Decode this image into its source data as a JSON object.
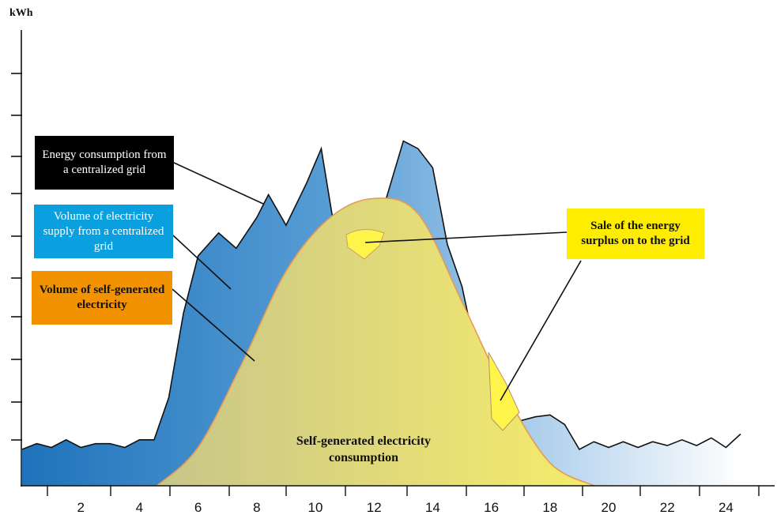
{
  "chart_data": {
    "type": "area",
    "ylabel": "kWh",
    "xlim": [
      0,
      26
    ],
    "x_ticks": [
      "2",
      "4",
      "6",
      "8",
      "10",
      "12",
      "14",
      "16",
      "18",
      "20",
      "22",
      "24"
    ],
    "series": [
      {
        "name": "Volume of electricity supply from a centralized grid",
        "color": "#2f86c8",
        "x": [
          0,
          0.5,
          1,
          1.5,
          2,
          2.5,
          3,
          3.5,
          4,
          4.5,
          5,
          5.5,
          6,
          6.7,
          7.3,
          8,
          8.4,
          9,
          9.7,
          10.2,
          10.8,
          11.5,
          12.3,
          13,
          13.5,
          14,
          14.5,
          15,
          15.5,
          16,
          16.5,
          17,
          17.5,
          18,
          18.5,
          19,
          19.5,
          20,
          20.5,
          21,
          21.5,
          22,
          22.5,
          23,
          23.5,
          24,
          24.5
        ],
        "y": [
          0.95,
          1.1,
          1.0,
          1.2,
          1.0,
          1.1,
          1.1,
          1.0,
          1.2,
          1.2,
          2.3,
          4.5,
          6.0,
          6.6,
          6.2,
          7.0,
          7.6,
          6.8,
          7.9,
          8.8,
          6.0,
          6.0,
          7.2,
          9.0,
          8.8,
          8.3,
          6.3,
          5.2,
          3.4,
          1.5,
          1.3,
          1.7,
          1.8,
          1.85,
          1.6,
          0.95,
          1.15,
          1.0,
          1.15,
          1.0,
          1.15,
          1.05,
          1.2,
          1.05,
          1.25,
          1.0,
          1.35
        ]
      },
      {
        "name": "Volume of self-generated electricity",
        "color": "#e8e070",
        "x": [
          4.6,
          6,
          7.5,
          9,
          10.5,
          12,
          13.5,
          15,
          16.5,
          18,
          19.5
        ],
        "y": [
          0,
          1.0,
          3.2,
          5.6,
          7.0,
          7.5,
          7.1,
          4.8,
          2.4,
          0.6,
          0
        ]
      }
    ],
    "annotations": [
      "Energy consumption from a centralized grid",
      "Volume of electricity supply from a centralized grid",
      "Volume of self-generated electricity",
      "Sale of the energy surplus on to the grid",
      "Self-generated electricity consumption"
    ]
  },
  "labels": {
    "ylabel": "kWh",
    "central_grid": "Energy consumption from a centralized grid",
    "supply": "Volume of electricity supply from a centralized grid",
    "self_generated": "Volume of self-generated electricity",
    "surplus": "Sale of the energy surplus on to the grid",
    "self_consumption": "Self-generated electricity consumption"
  },
  "colors": {
    "grid_blue_dark": "#2a7cc0",
    "grid_blue_light": "#a8cbe8",
    "self_yellow": "#e8e070",
    "surplus_yellow": "#fff34d",
    "label_black": "#000000",
    "label_cyan": "#0aa0df",
    "label_orange": "#f39200",
    "label_yellow": "#ffed00"
  }
}
